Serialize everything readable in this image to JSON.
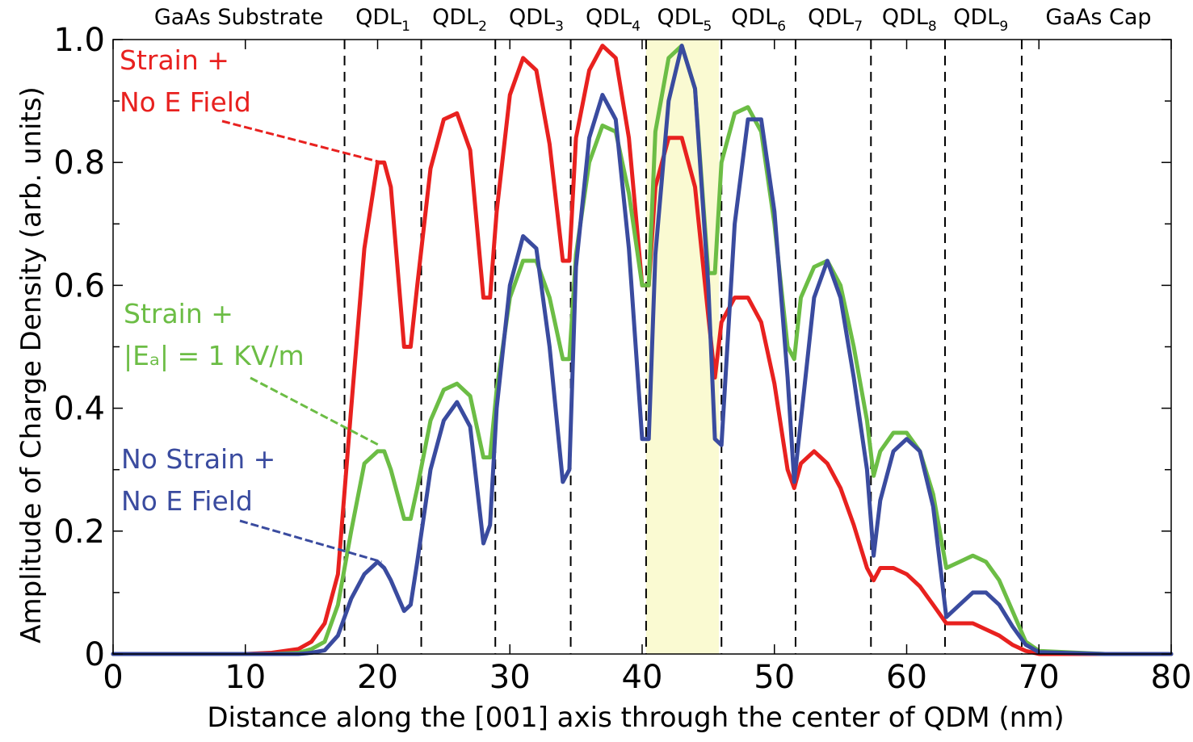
{
  "chart_data": {
    "type": "line",
    "title": "",
    "xlabel": "Distance along the [001] axis through the center of QDM (nm)",
    "ylabel": "Amplitude of Charge Density (arb. units)",
    "xlim": [
      0,
      80
    ],
    "ylim": [
      0,
      1.0
    ],
    "x_ticks": [
      0,
      10,
      20,
      30,
      40,
      50,
      60,
      70,
      80
    ],
    "y_ticks": [
      0,
      0.2,
      0.4,
      0.6,
      0.8,
      1.0
    ],
    "x_tick_labels": [
      "0",
      "10",
      "20",
      "30",
      "40",
      "50",
      "60",
      "70",
      "80"
    ],
    "y_tick_labels": [
      "0",
      "0.2",
      "0.4",
      "0.6",
      "0.8",
      "1.0"
    ],
    "grid": false,
    "region_labels": [
      {
        "id": "substrate",
        "text": "GaAs Substrate",
        "sub": "",
        "x": 9.5
      },
      {
        "id": "qdl1",
        "text": "QDL",
        "sub": "1",
        "x": 20.4
      },
      {
        "id": "qdl2",
        "text": "QDL",
        "sub": "2",
        "x": 26.2
      },
      {
        "id": "qdl3",
        "text": "QDL",
        "sub": "3",
        "x": 32.0
      },
      {
        "id": "qdl4",
        "text": "QDL",
        "sub": "4",
        "x": 37.8
      },
      {
        "id": "qdl5",
        "text": "QDL",
        "sub": "5",
        "x": 43.2
      },
      {
        "id": "qdl6",
        "text": "QDL",
        "sub": "6",
        "x": 48.8
      },
      {
        "id": "qdl7",
        "text": "QDL",
        "sub": "7",
        "x": 54.6
      },
      {
        "id": "qdl8",
        "text": "QDL",
        "sub": "8",
        "x": 60.2
      },
      {
        "id": "qdl9",
        "text": "QDL",
        "sub": "9",
        "x": 65.6
      },
      {
        "id": "cap",
        "text": "GaAs Cap",
        "sub": "",
        "x": 74.5
      }
    ],
    "boundaries": [
      17.5,
      23.3,
      28.9,
      34.6,
      40.3,
      46.0,
      51.6,
      57.3,
      62.9,
      68.7
    ],
    "highlight_region": [
      40.3,
      45.8
    ],
    "series": [
      {
        "name": "Strain + No E Field",
        "color": "#e8211f",
        "x": [
          0,
          10,
          12,
          14,
          15,
          16,
          17,
          18,
          19,
          20,
          20.5,
          21,
          22,
          22.5,
          23,
          24,
          25,
          26,
          27,
          28,
          28.5,
          29,
          30,
          31,
          32,
          33,
          34,
          34.5,
          35,
          36,
          37,
          38,
          39,
          40,
          40.5,
          41,
          42,
          43,
          44,
          45,
          45.5,
          46,
          47,
          48,
          49,
          50,
          51,
          51.5,
          52,
          53,
          54,
          55,
          56,
          57,
          57.5,
          58,
          59,
          60,
          61,
          62,
          63,
          64,
          65,
          66,
          67,
          68,
          69,
          70,
          75,
          80
        ],
        "values": [
          0,
          0,
          0.002,
          0.008,
          0.02,
          0.05,
          0.13,
          0.4,
          0.66,
          0.8,
          0.8,
          0.76,
          0.5,
          0.5,
          0.6,
          0.79,
          0.87,
          0.88,
          0.82,
          0.58,
          0.58,
          0.72,
          0.91,
          0.97,
          0.95,
          0.83,
          0.64,
          0.64,
          0.84,
          0.95,
          0.99,
          0.97,
          0.84,
          0.6,
          0.6,
          0.76,
          0.84,
          0.84,
          0.76,
          0.55,
          0.45,
          0.54,
          0.58,
          0.58,
          0.54,
          0.44,
          0.3,
          0.27,
          0.31,
          0.33,
          0.31,
          0.27,
          0.21,
          0.14,
          0.12,
          0.14,
          0.14,
          0.13,
          0.11,
          0.08,
          0.05,
          0.05,
          0.05,
          0.04,
          0.03,
          0.015,
          0.005,
          0,
          0,
          0
        ]
      },
      {
        "name": "Strain + |Ea| = 1 KV/m",
        "color": "#6cbd45",
        "x": [
          0,
          10,
          12,
          14,
          15,
          16,
          17,
          18,
          19,
          20,
          20.5,
          21,
          22,
          22.5,
          23,
          24,
          25,
          26,
          27,
          28,
          28.5,
          29,
          30,
          31,
          32,
          33,
          34,
          34.5,
          35,
          36,
          37,
          38,
          39,
          40,
          40.5,
          41,
          42,
          43,
          44,
          45,
          45.5,
          46,
          47,
          48,
          49,
          50,
          51,
          51.5,
          52,
          53,
          54,
          55,
          56,
          57,
          57.5,
          58,
          59,
          60,
          61,
          62,
          63,
          64,
          65,
          66,
          67,
          68,
          69,
          70,
          75,
          80
        ],
        "values": [
          0,
          0,
          0,
          0.002,
          0.008,
          0.02,
          0.08,
          0.2,
          0.31,
          0.33,
          0.33,
          0.3,
          0.22,
          0.22,
          0.27,
          0.38,
          0.43,
          0.44,
          0.42,
          0.32,
          0.32,
          0.43,
          0.58,
          0.64,
          0.64,
          0.58,
          0.48,
          0.48,
          0.65,
          0.8,
          0.86,
          0.85,
          0.75,
          0.6,
          0.6,
          0.85,
          0.97,
          0.99,
          0.92,
          0.62,
          0.62,
          0.8,
          0.88,
          0.89,
          0.85,
          0.7,
          0.5,
          0.48,
          0.58,
          0.63,
          0.64,
          0.6,
          0.5,
          0.38,
          0.29,
          0.33,
          0.36,
          0.36,
          0.33,
          0.26,
          0.14,
          0.15,
          0.16,
          0.15,
          0.12,
          0.07,
          0.02,
          0.005,
          0,
          0
        ]
      },
      {
        "name": "No Strain + No E Field",
        "color": "#3a4b9f",
        "x": [
          0,
          10,
          12,
          14,
          15,
          16,
          17,
          18,
          19,
          20,
          20.5,
          21,
          22,
          22.5,
          23,
          24,
          25,
          26,
          27,
          28,
          28.5,
          29,
          30,
          31,
          32,
          33,
          34,
          34.5,
          35,
          36,
          37,
          38,
          39,
          40,
          40.5,
          41,
          42,
          43,
          44,
          45,
          45.5,
          46,
          47,
          48,
          49,
          50,
          51,
          51.5,
          52,
          53,
          54,
          55,
          56,
          57,
          57.5,
          58,
          59,
          60,
          61,
          62,
          63,
          64,
          65,
          66,
          67,
          68,
          69,
          70,
          75,
          80
        ],
        "values": [
          0,
          0,
          0,
          0,
          0.002,
          0.006,
          0.03,
          0.09,
          0.13,
          0.15,
          0.14,
          0.12,
          0.07,
          0.08,
          0.15,
          0.3,
          0.38,
          0.41,
          0.37,
          0.18,
          0.21,
          0.4,
          0.6,
          0.68,
          0.66,
          0.5,
          0.28,
          0.3,
          0.63,
          0.84,
          0.91,
          0.87,
          0.66,
          0.35,
          0.35,
          0.65,
          0.9,
          0.99,
          0.92,
          0.6,
          0.35,
          0.34,
          0.7,
          0.87,
          0.87,
          0.72,
          0.45,
          0.28,
          0.38,
          0.58,
          0.64,
          0.58,
          0.45,
          0.3,
          0.16,
          0.25,
          0.33,
          0.35,
          0.33,
          0.24,
          0.06,
          0.08,
          0.1,
          0.1,
          0.08,
          0.045,
          0.015,
          0.003,
          0,
          0
        ]
      }
    ],
    "annotations": [
      {
        "id": "red",
        "line1": "Strain +",
        "line2": "No E Field",
        "color": "#e8211f",
        "target_x": 20.3,
        "target_y": 0.8
      },
      {
        "id": "green",
        "line1": "Strain +",
        "line2": "|Eₐ| = 1 KV/m",
        "color": "#6cbd45",
        "target_x": 20.1,
        "target_y": 0.34
      },
      {
        "id": "blue",
        "line1": "No Strain +",
        "line2": "No E Field",
        "color": "#3a4b9f",
        "target_x": 20.3,
        "target_y": 0.15
      }
    ]
  }
}
